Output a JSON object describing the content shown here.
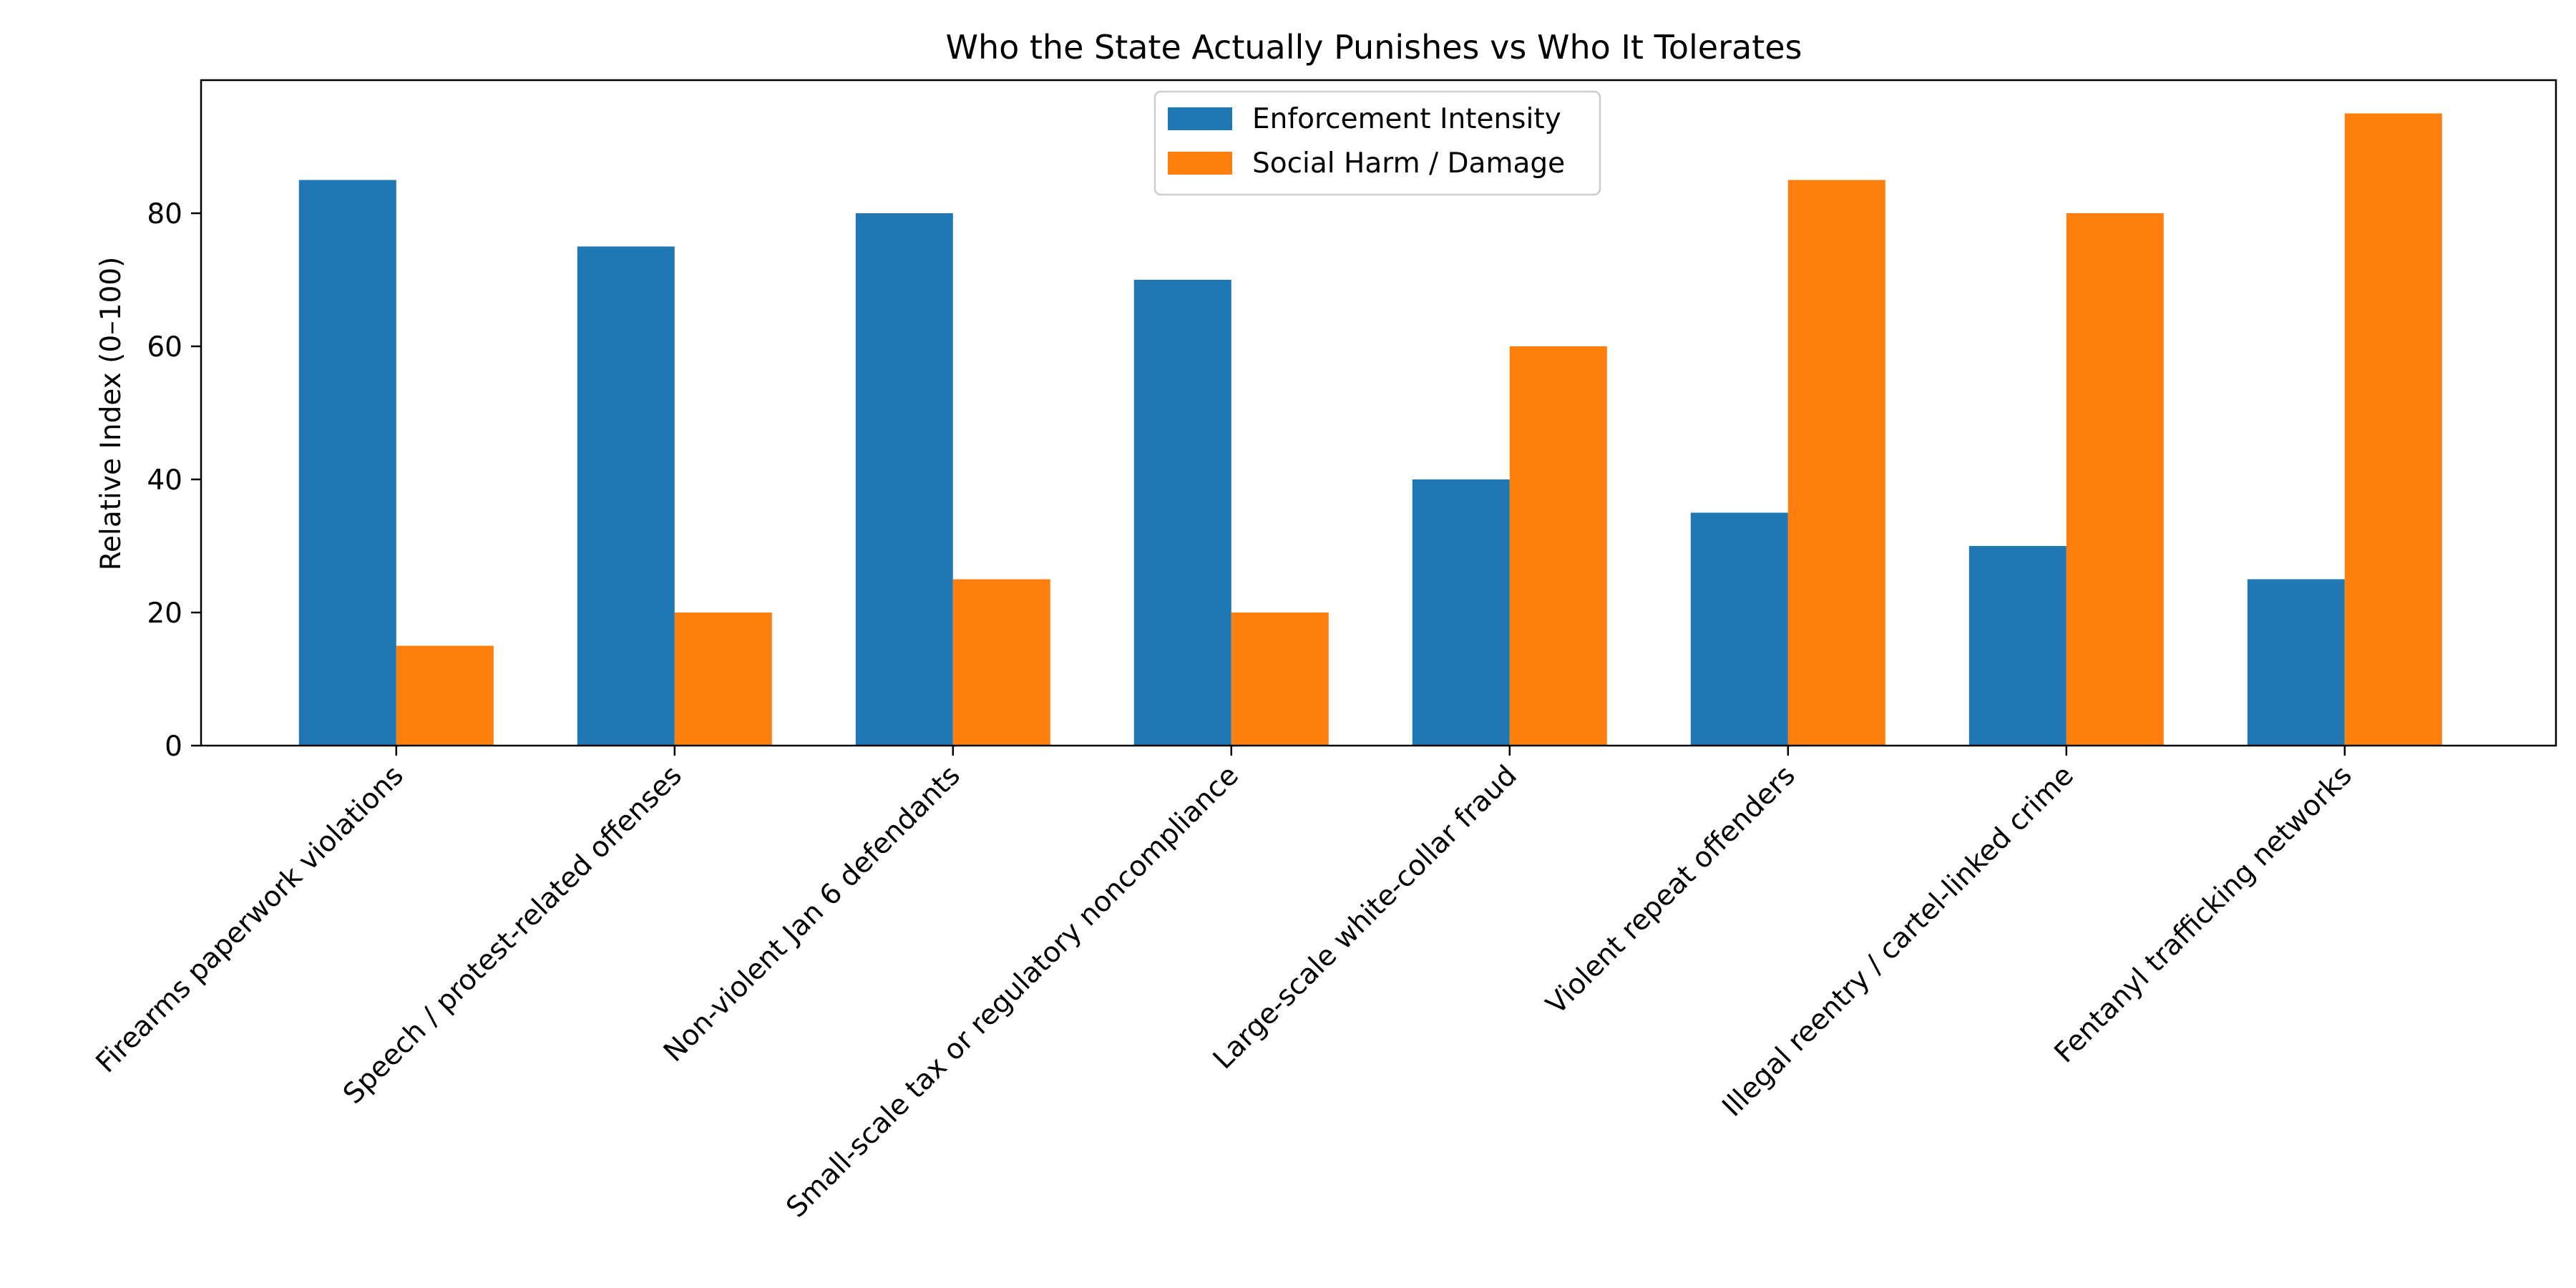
{
  "chart_data": {
    "type": "bar",
    "title": "Who the State Actually Punishes vs Who It Tolerates",
    "xlabel": "",
    "ylabel": "Relative Index (0–100)",
    "ylim": [
      0,
      100
    ],
    "yticks": [
      0,
      20,
      40,
      60,
      80
    ],
    "grid": false,
    "legend_position": "top-center",
    "categories": [
      "Firearms paperwork violations",
      "Speech / protest-related offenses",
      "Non-violent Jan 6 defendants",
      "Small-scale tax or regulatory noncompliance",
      "Large-scale white-collar fraud",
      "Violent repeat offenders",
      "Illegal reentry / cartel-linked crime",
      "Fentanyl trafficking networks"
    ],
    "series": [
      {
        "name": "Enforcement Intensity",
        "color": "#1f77b4",
        "values": [
          85,
          75,
          80,
          70,
          40,
          35,
          30,
          25
        ]
      },
      {
        "name": "Social Harm / Damage",
        "color": "#ff7f0e",
        "values": [
          15,
          20,
          25,
          20,
          60,
          85,
          80,
          95
        ]
      }
    ]
  }
}
